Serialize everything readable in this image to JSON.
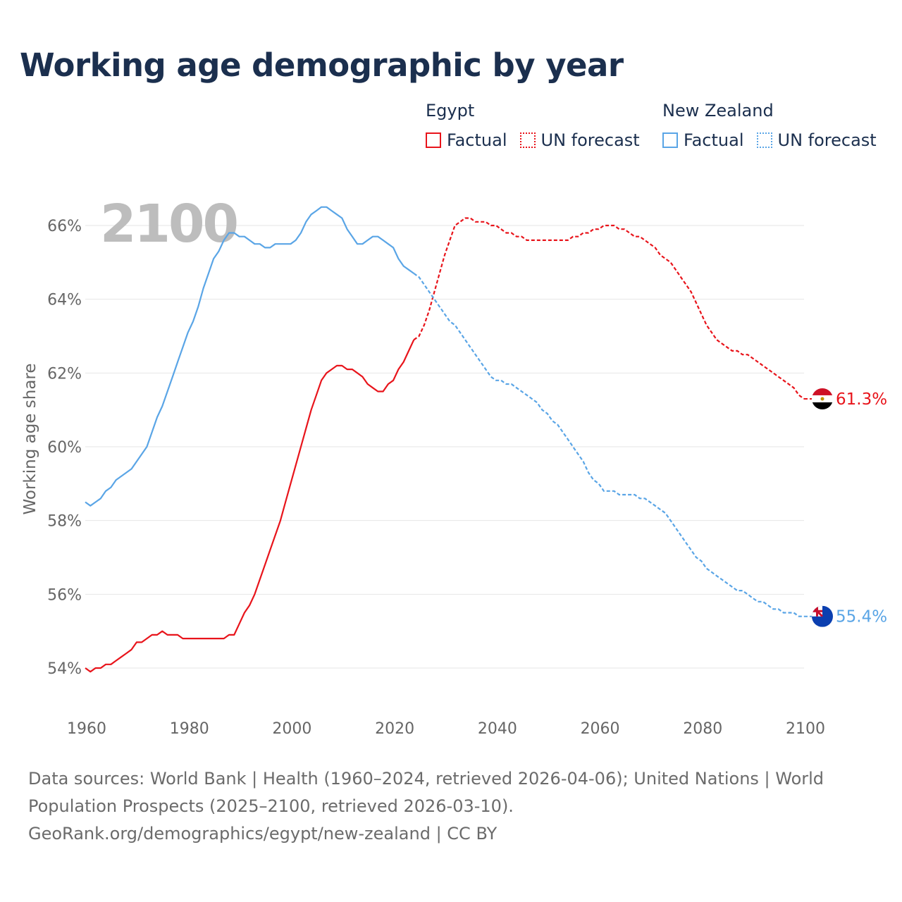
{
  "title": "Working age demographic by year",
  "legend": {
    "groups": [
      {
        "name": "Egypt",
        "color": "#e8141b",
        "items": [
          {
            "label": "Factual",
            "style": "solid"
          },
          {
            "label": "UN forecast",
            "style": "dotted"
          }
        ]
      },
      {
        "name": "New Zealand",
        "color": "#5aa5e6",
        "items": [
          {
            "label": "Factual",
            "style": "solid"
          },
          {
            "label": "UN forecast",
            "style": "dotted"
          }
        ]
      }
    ]
  },
  "footer": {
    "line1": "Data sources: World Bank | Health (1960–2024, retrieved 2026-04-06); United Nations | World",
    "line2": "Population Prospects (2025–2100, retrieved 2026-03-10).",
    "line3": "GeoRank.org/demographics/egypt/new-zealand | CC BY"
  },
  "chart_data": {
    "type": "line",
    "title": "Working age demographic by year",
    "year_overlay": "2100",
    "ylabel": "Working age share",
    "xlabel": "",
    "xlim": [
      1960,
      2100
    ],
    "ylim": [
      53,
      67
    ],
    "x_ticks": [
      "1960",
      "1980",
      "2000",
      "2020",
      "2040",
      "2060",
      "2080",
      "2100"
    ],
    "y_ticks": [
      "54%",
      "56%",
      "58%",
      "60%",
      "62%",
      "64%",
      "66%"
    ],
    "y_tick_values": [
      54,
      56,
      58,
      60,
      62,
      64,
      66
    ],
    "factual_end_year": 2024,
    "series": [
      {
        "name": "Egypt",
        "color": "#e8141b",
        "end_label": "61.3%",
        "points": [
          [
            1960,
            54.0
          ],
          [
            1961,
            53.9
          ],
          [
            1962,
            54.0
          ],
          [
            1963,
            54.0
          ],
          [
            1964,
            54.1
          ],
          [
            1965,
            54.1
          ],
          [
            1966,
            54.2
          ],
          [
            1967,
            54.3
          ],
          [
            1968,
            54.4
          ],
          [
            1969,
            54.5
          ],
          [
            1970,
            54.7
          ],
          [
            1971,
            54.7
          ],
          [
            1972,
            54.8
          ],
          [
            1973,
            54.9
          ],
          [
            1974,
            54.9
          ],
          [
            1975,
            55.0
          ],
          [
            1976,
            54.9
          ],
          [
            1977,
            54.9
          ],
          [
            1978,
            54.9
          ],
          [
            1979,
            54.8
          ],
          [
            1980,
            54.8
          ],
          [
            1981,
            54.8
          ],
          [
            1982,
            54.8
          ],
          [
            1983,
            54.8
          ],
          [
            1984,
            54.8
          ],
          [
            1985,
            54.8
          ],
          [
            1986,
            54.8
          ],
          [
            1987,
            54.8
          ],
          [
            1988,
            54.9
          ],
          [
            1989,
            54.9
          ],
          [
            1990,
            55.2
          ],
          [
            1991,
            55.5
          ],
          [
            1992,
            55.7
          ],
          [
            1993,
            56.0
          ],
          [
            1994,
            56.4
          ],
          [
            1995,
            56.8
          ],
          [
            1996,
            57.2
          ],
          [
            1997,
            57.6
          ],
          [
            1998,
            58.0
          ],
          [
            1999,
            58.5
          ],
          [
            2000,
            59.0
          ],
          [
            2001,
            59.5
          ],
          [
            2002,
            60.0
          ],
          [
            2003,
            60.5
          ],
          [
            2004,
            61.0
          ],
          [
            2005,
            61.4
          ],
          [
            2006,
            61.8
          ],
          [
            2007,
            62.0
          ],
          [
            2008,
            62.1
          ],
          [
            2009,
            62.2
          ],
          [
            2010,
            62.2
          ],
          [
            2011,
            62.1
          ],
          [
            2012,
            62.1
          ],
          [
            2013,
            62.0
          ],
          [
            2014,
            61.9
          ],
          [
            2015,
            61.7
          ],
          [
            2016,
            61.6
          ],
          [
            2017,
            61.5
          ],
          [
            2018,
            61.5
          ],
          [
            2019,
            61.7
          ],
          [
            2020,
            61.8
          ],
          [
            2021,
            62.1
          ],
          [
            2022,
            62.3
          ],
          [
            2023,
            62.6
          ],
          [
            2024,
            62.9
          ],
          [
            2025,
            63.0
          ],
          [
            2026,
            63.3
          ],
          [
            2027,
            63.7
          ],
          [
            2028,
            64.2
          ],
          [
            2029,
            64.7
          ],
          [
            2030,
            65.2
          ],
          [
            2031,
            65.6
          ],
          [
            2032,
            66.0
          ],
          [
            2033,
            66.1
          ],
          [
            2034,
            66.2
          ],
          [
            2035,
            66.2
          ],
          [
            2036,
            66.1
          ],
          [
            2037,
            66.1
          ],
          [
            2038,
            66.1
          ],
          [
            2039,
            66.0
          ],
          [
            2040,
            66.0
          ],
          [
            2041,
            65.9
          ],
          [
            2042,
            65.8
          ],
          [
            2043,
            65.8
          ],
          [
            2044,
            65.7
          ],
          [
            2045,
            65.7
          ],
          [
            2046,
            65.6
          ],
          [
            2047,
            65.6
          ],
          [
            2048,
            65.6
          ],
          [
            2049,
            65.6
          ],
          [
            2050,
            65.6
          ],
          [
            2051,
            65.6
          ],
          [
            2052,
            65.6
          ],
          [
            2053,
            65.6
          ],
          [
            2054,
            65.6
          ],
          [
            2055,
            65.7
          ],
          [
            2056,
            65.7
          ],
          [
            2057,
            65.8
          ],
          [
            2058,
            65.8
          ],
          [
            2059,
            65.9
          ],
          [
            2060,
            65.9
          ],
          [
            2061,
            66.0
          ],
          [
            2062,
            66.0
          ],
          [
            2063,
            66.0
          ],
          [
            2064,
            65.9
          ],
          [
            2065,
            65.9
          ],
          [
            2066,
            65.8
          ],
          [
            2067,
            65.7
          ],
          [
            2068,
            65.7
          ],
          [
            2069,
            65.6
          ],
          [
            2070,
            65.5
          ],
          [
            2071,
            65.4
          ],
          [
            2072,
            65.2
          ],
          [
            2073,
            65.1
          ],
          [
            2074,
            65.0
          ],
          [
            2075,
            64.8
          ],
          [
            2076,
            64.6
          ],
          [
            2077,
            64.4
          ],
          [
            2078,
            64.2
          ],
          [
            2079,
            63.9
          ],
          [
            2080,
            63.6
          ],
          [
            2081,
            63.3
          ],
          [
            2082,
            63.1
          ],
          [
            2083,
            62.9
          ],
          [
            2084,
            62.8
          ],
          [
            2085,
            62.7
          ],
          [
            2086,
            62.6
          ],
          [
            2087,
            62.6
          ],
          [
            2088,
            62.5
          ],
          [
            2089,
            62.5
          ],
          [
            2090,
            62.4
          ],
          [
            2091,
            62.3
          ],
          [
            2092,
            62.2
          ],
          [
            2093,
            62.1
          ],
          [
            2094,
            62.0
          ],
          [
            2095,
            61.9
          ],
          [
            2096,
            61.8
          ],
          [
            2097,
            61.7
          ],
          [
            2098,
            61.6
          ],
          [
            2099,
            61.4
          ],
          [
            2100,
            61.3
          ]
        ]
      },
      {
        "name": "New Zealand",
        "color": "#5aa5e6",
        "end_label": "55.4%",
        "points": [
          [
            1960,
            58.5
          ],
          [
            1961,
            58.4
          ],
          [
            1962,
            58.5
          ],
          [
            1963,
            58.6
          ],
          [
            1964,
            58.8
          ],
          [
            1965,
            58.9
          ],
          [
            1966,
            59.1
          ],
          [
            1967,
            59.2
          ],
          [
            1968,
            59.3
          ],
          [
            1969,
            59.4
          ],
          [
            1970,
            59.6
          ],
          [
            1971,
            59.8
          ],
          [
            1972,
            60.0
          ],
          [
            1973,
            60.4
          ],
          [
            1974,
            60.8
          ],
          [
            1975,
            61.1
          ],
          [
            1976,
            61.5
          ],
          [
            1977,
            61.9
          ],
          [
            1978,
            62.3
          ],
          [
            1979,
            62.7
          ],
          [
            1980,
            63.1
          ],
          [
            1981,
            63.4
          ],
          [
            1982,
            63.8
          ],
          [
            1983,
            64.3
          ],
          [
            1984,
            64.7
          ],
          [
            1985,
            65.1
          ],
          [
            1986,
            65.3
          ],
          [
            1987,
            65.6
          ],
          [
            1988,
            65.8
          ],
          [
            1989,
            65.8
          ],
          [
            1990,
            65.7
          ],
          [
            1991,
            65.7
          ],
          [
            1992,
            65.6
          ],
          [
            1993,
            65.5
          ],
          [
            1994,
            65.5
          ],
          [
            1995,
            65.4
          ],
          [
            1996,
            65.4
          ],
          [
            1997,
            65.5
          ],
          [
            1998,
            65.5
          ],
          [
            1999,
            65.5
          ],
          [
            2000,
            65.5
          ],
          [
            2001,
            65.6
          ],
          [
            2002,
            65.8
          ],
          [
            2003,
            66.1
          ],
          [
            2004,
            66.3
          ],
          [
            2005,
            66.4
          ],
          [
            2006,
            66.5
          ],
          [
            2007,
            66.5
          ],
          [
            2008,
            66.4
          ],
          [
            2009,
            66.3
          ],
          [
            2010,
            66.2
          ],
          [
            2011,
            65.9
          ],
          [
            2012,
            65.7
          ],
          [
            2013,
            65.5
          ],
          [
            2014,
            65.5
          ],
          [
            2015,
            65.6
          ],
          [
            2016,
            65.7
          ],
          [
            2017,
            65.7
          ],
          [
            2018,
            65.6
          ],
          [
            2019,
            65.5
          ],
          [
            2020,
            65.4
          ],
          [
            2021,
            65.1
          ],
          [
            2022,
            64.9
          ],
          [
            2023,
            64.8
          ],
          [
            2024,
            64.7
          ],
          [
            2025,
            64.6
          ],
          [
            2026,
            64.4
          ],
          [
            2027,
            64.2
          ],
          [
            2028,
            64.0
          ],
          [
            2029,
            63.8
          ],
          [
            2030,
            63.6
          ],
          [
            2031,
            63.4
          ],
          [
            2032,
            63.3
          ],
          [
            2033,
            63.1
          ],
          [
            2034,
            62.9
          ],
          [
            2035,
            62.7
          ],
          [
            2036,
            62.5
          ],
          [
            2037,
            62.3
          ],
          [
            2038,
            62.1
          ],
          [
            2039,
            61.9
          ],
          [
            2040,
            61.8
          ],
          [
            2041,
            61.8
          ],
          [
            2042,
            61.7
          ],
          [
            2043,
            61.7
          ],
          [
            2044,
            61.6
          ],
          [
            2045,
            61.5
          ],
          [
            2046,
            61.4
          ],
          [
            2047,
            61.3
          ],
          [
            2048,
            61.2
          ],
          [
            2049,
            61.0
          ],
          [
            2050,
            60.9
          ],
          [
            2051,
            60.7
          ],
          [
            2052,
            60.6
          ],
          [
            2053,
            60.4
          ],
          [
            2054,
            60.2
          ],
          [
            2055,
            60.0
          ],
          [
            2056,
            59.8
          ],
          [
            2057,
            59.6
          ],
          [
            2058,
            59.3
          ],
          [
            2059,
            59.1
          ],
          [
            2060,
            59.0
          ],
          [
            2061,
            58.8
          ],
          [
            2062,
            58.8
          ],
          [
            2063,
            58.8
          ],
          [
            2064,
            58.7
          ],
          [
            2065,
            58.7
          ],
          [
            2066,
            58.7
          ],
          [
            2067,
            58.7
          ],
          [
            2068,
            58.6
          ],
          [
            2069,
            58.6
          ],
          [
            2070,
            58.5
          ],
          [
            2071,
            58.4
          ],
          [
            2072,
            58.3
          ],
          [
            2073,
            58.2
          ],
          [
            2074,
            58.0
          ],
          [
            2075,
            57.8
          ],
          [
            2076,
            57.6
          ],
          [
            2077,
            57.4
          ],
          [
            2078,
            57.2
          ],
          [
            2079,
            57.0
          ],
          [
            2080,
            56.9
          ],
          [
            2081,
            56.7
          ],
          [
            2082,
            56.6
          ],
          [
            2083,
            56.5
          ],
          [
            2084,
            56.4
          ],
          [
            2085,
            56.3
          ],
          [
            2086,
            56.2
          ],
          [
            2087,
            56.1
          ],
          [
            2088,
            56.1
          ],
          [
            2089,
            56.0
          ],
          [
            2090,
            55.9
          ],
          [
            2091,
            55.8
          ],
          [
            2092,
            55.8
          ],
          [
            2093,
            55.7
          ],
          [
            2094,
            55.6
          ],
          [
            2095,
            55.6
          ],
          [
            2096,
            55.5
          ],
          [
            2097,
            55.5
          ],
          [
            2098,
            55.5
          ],
          [
            2099,
            55.4
          ],
          [
            2100,
            55.4
          ]
        ]
      }
    ]
  }
}
